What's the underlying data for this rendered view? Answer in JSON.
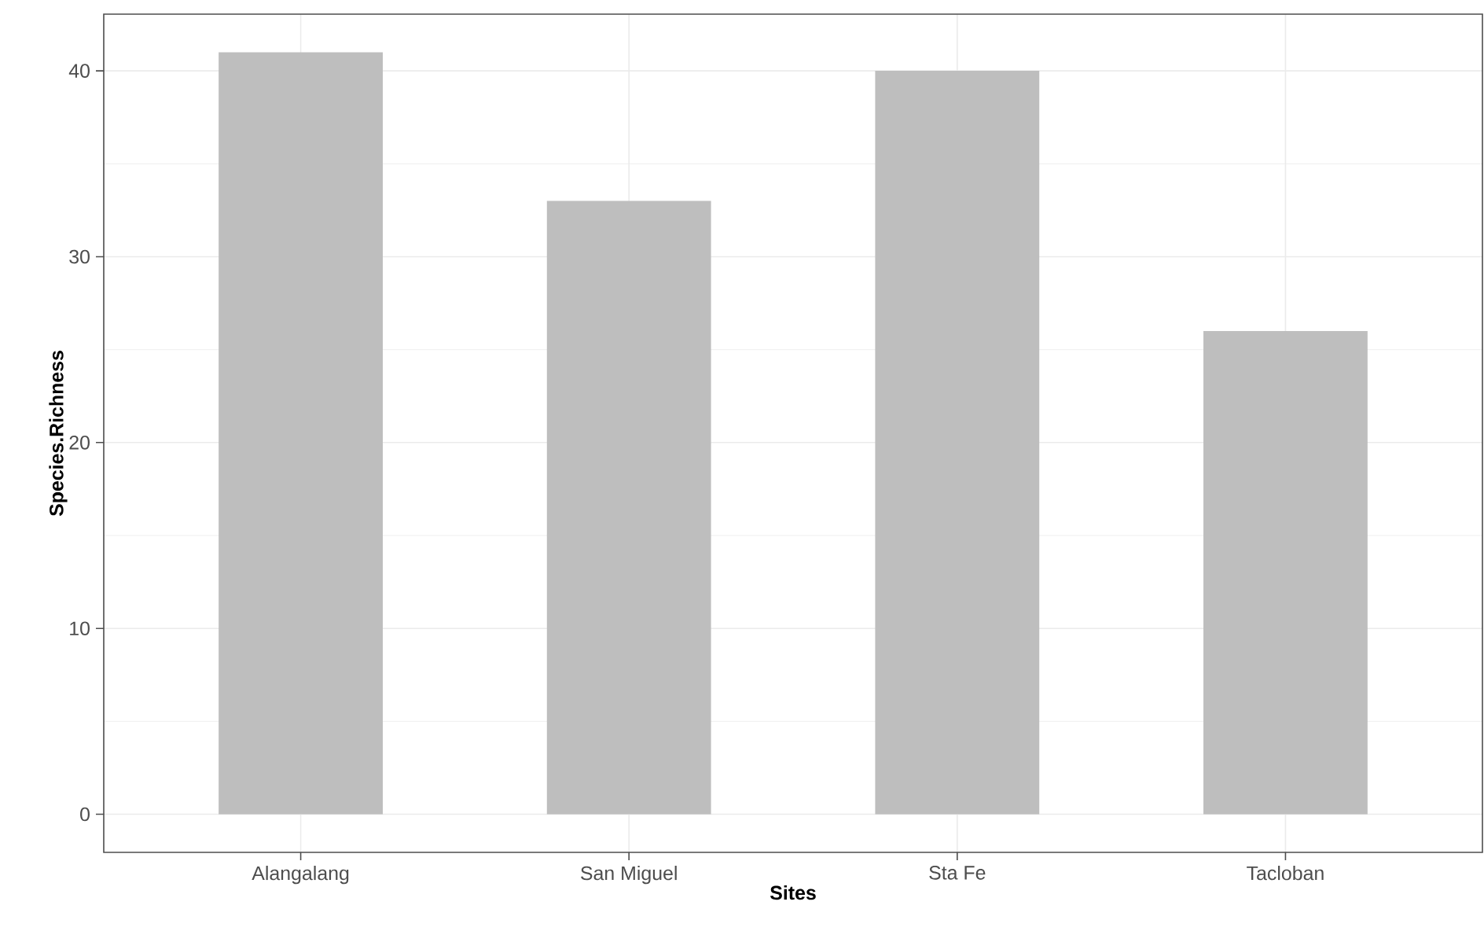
{
  "chart_data": {
    "type": "bar",
    "xlabel": "Sites",
    "ylabel": "Species.Richness",
    "categories": [
      "Alangalang",
      "San Miguel",
      "Sta Fe",
      "Tacloban"
    ],
    "values": [
      41,
      33,
      40,
      26
    ],
    "color": "#bebebe",
    "ylim": [
      -2.05,
      43.05
    ],
    "yticks": [
      0,
      10,
      20,
      30,
      40
    ],
    "grid": true
  }
}
